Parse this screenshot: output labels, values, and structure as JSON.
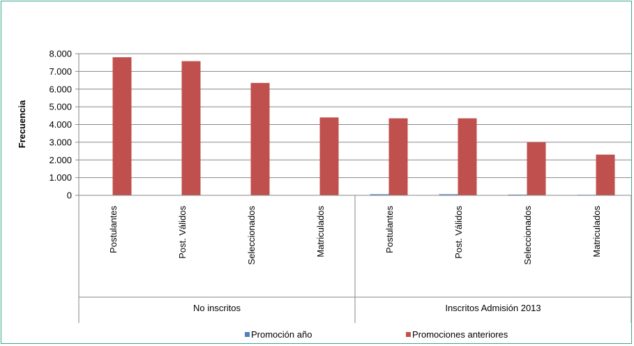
{
  "chart_data": {
    "type": "bar",
    "ylabel": "Frecuencia",
    "ylim": [
      0,
      8000
    ],
    "yticks": [
      "0",
      "1.000",
      "2.000",
      "3.000",
      "4.000",
      "5.000",
      "6.000",
      "7.000",
      "8.000"
    ],
    "ytick_values": [
      0,
      1000,
      2000,
      3000,
      4000,
      5000,
      6000,
      7000,
      8000
    ],
    "groups": [
      {
        "label": "No inscritos",
        "categories": [
          "Postulantes",
          "Post. Válidos",
          "Seleccionados",
          "Matriculados"
        ]
      },
      {
        "label": "Inscritos Admisión 2013",
        "categories": [
          "Postulantes",
          "Post. Válidos",
          "Seleccionados",
          "Matriculados"
        ]
      }
    ],
    "series": [
      {
        "name": "Promoción año",
        "color": "#4f81bd",
        "values": [
          20,
          10,
          10,
          20,
          60,
          60,
          40,
          30
        ]
      },
      {
        "name": "Promociones anteriores",
        "color": "#c0504d",
        "values": [
          7800,
          7580,
          6350,
          4400,
          4350,
          4350,
          3000,
          2300
        ]
      }
    ],
    "legend_position": "bottom",
    "grid": true,
    "grid_color": "#868686"
  }
}
